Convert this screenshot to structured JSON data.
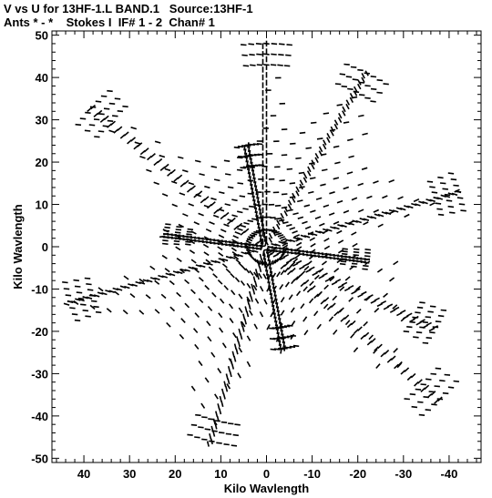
{
  "header": {
    "line1": "V vs U for 13HF-1.L BAND.1   Source:13HF-1",
    "line2": "Ants * - *    Stokes I  IF# 1 - 2  Chan# 1"
  },
  "chart_data": {
    "type": "scatter",
    "title": "V vs U for 13HF-1.L BAND.1   Source:13HF-1",
    "subtitle": "Ants * - *    Stokes I  IF# 1 - 2  Chan# 1",
    "xlabel": "Kilo Wavlength",
    "ylabel": "Kilo Wavlength",
    "xlim": [
      47,
      -47
    ],
    "ylim": [
      -51,
      51
    ],
    "x_reversed": true,
    "xticks": [
      40,
      30,
      20,
      10,
      0,
      -10,
      -20,
      -30,
      -40
    ],
    "yticks": [
      50,
      40,
      30,
      20,
      10,
      0,
      -10,
      -20,
      -30,
      -40,
      -50
    ],
    "grid": false,
    "legend": "none",
    "marker_color": "#000000",
    "pattern": {
      "description": "uv-coverage tracks: 12-point star with point-symmetric pairs (u,v) and (-u,-v)",
      "arms": [
        {
          "end_u": 0.0,
          "end_v": 48.0
        },
        {
          "end_u": -22.0,
          "end_v": 41.0
        },
        {
          "end_u": -42.0,
          "end_v": 13.0
        },
        {
          "end_u": -22.0,
          "end_v": -3.0
        },
        {
          "end_u": -37.0,
          "end_v": -19.0
        },
        {
          "end_u": -38.0,
          "end_v": -36.0
        },
        {
          "end_u": -4.0,
          "end_v": -24.0
        },
        {
          "end_u": 12.0,
          "end_v": -46.0
        },
        {
          "end_u": 43.0,
          "end_v": -13.0
        },
        {
          "end_u": 22.0,
          "end_v": 3.0
        },
        {
          "end_u": 38.0,
          "end_v": 33.0
        },
        {
          "end_u": 4.0,
          "end_v": 24.0
        }
      ],
      "ring_radii": [
        4,
        7,
        10,
        13,
        16,
        19,
        22,
        25,
        28,
        31,
        34,
        37,
        40,
        43
      ],
      "points_per_ring": 44
    }
  }
}
